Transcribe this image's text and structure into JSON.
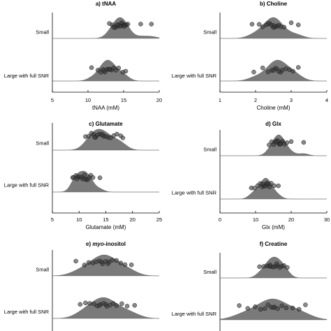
{
  "chart_data": [
    {
      "type": "raincloud",
      "title": "a) tNAA",
      "xlabel": "tNAA (mM)",
      "xlim": [
        5,
        20
      ],
      "xticks": [
        5,
        10,
        15,
        20
      ],
      "categories": [
        "Small",
        "Large with full SNR"
      ],
      "series": [
        {
          "points": [
            13.0,
            13.4,
            13.8,
            14.0,
            14.2,
            14.4,
            14.6,
            14.8,
            15.0,
            15.2,
            15.4,
            15.6,
            13.6,
            14.1,
            14.7,
            15.1,
            17.4,
            18.9
          ]
        },
        {
          "points": [
            10.5,
            11.4,
            11.8,
            12.1,
            12.4,
            12.6,
            12.9,
            13.1,
            13.3,
            13.6,
            13.9,
            14.3,
            14.9,
            15.3,
            12.2,
            13.0
          ]
        }
      ]
    },
    {
      "type": "raincloud",
      "title": "b) Choline",
      "xlabel": "Choline (mM)",
      "xlim": [
        1,
        4
      ],
      "xticks": [
        1,
        2,
        3,
        4
      ],
      "categories": [
        "Small",
        "Large with full SNR"
      ],
      "series": [
        {
          "points": [
            1.9,
            2.1,
            2.2,
            2.3,
            2.4,
            2.45,
            2.5,
            2.55,
            2.6,
            2.65,
            2.7,
            2.8,
            3.0,
            3.2,
            2.35,
            2.52
          ]
        },
        {
          "points": [
            1.95,
            2.2,
            2.35,
            2.45,
            2.55,
            2.6,
            2.7,
            2.75,
            2.85,
            2.95,
            3.05,
            3.2,
            2.5,
            2.65
          ]
        }
      ]
    },
    {
      "type": "raincloud",
      "title": "c) Glutamate",
      "xlabel": "Glutamate (mM)",
      "xlim": [
        5,
        25
      ],
      "xticks": [
        5,
        10,
        15,
        20,
        25
      ],
      "categories": [
        "Small",
        "Large with full SNR"
      ],
      "series": [
        {
          "points": [
            11.2,
            11.8,
            12.3,
            12.7,
            13.1,
            13.4,
            13.8,
            14.2,
            14.6,
            15.0,
            15.4,
            15.9,
            16.5,
            17.1,
            17.8,
            18.2,
            12.9,
            14.4
          ]
        },
        {
          "points": [
            8.8,
            9.0,
            9.4,
            9.8,
            10.1,
            10.4,
            10.7,
            11.0,
            11.3,
            11.6,
            11.9,
            12.2,
            12.6,
            13.9,
            9.6,
            11.1
          ]
        }
      ]
    },
    {
      "type": "raincloud",
      "title": "d) Glx",
      "xlabel": "Glx (mM)",
      "xlim": [
        0,
        30
      ],
      "xticks": [
        0,
        10,
        20,
        30
      ],
      "categories": [
        "Small",
        "Large with full SNR"
      ],
      "series": [
        {
          "points": [
            13.8,
            14.5,
            15.1,
            15.6,
            16.0,
            16.3,
            16.6,
            16.9,
            17.2,
            17.6,
            18.1,
            18.8,
            20.0,
            23.5,
            15.8,
            17.0
          ]
        },
        {
          "points": [
            8.8,
            9.7,
            10.6,
            11.3,
            11.9,
            12.4,
            12.8,
            13.1,
            13.5,
            13.9,
            14.4,
            15.2,
            16.4,
            12.0,
            13.3
          ]
        }
      ]
    },
    {
      "type": "raincloud",
      "title_prefix": "e) ",
      "title_italic": "myo",
      "title_suffix": "-inositol",
      "xlabel": "",
      "categories": [
        "Small",
        "Large with full SNR"
      ],
      "series": [
        {
          "points": [
            0.22,
            0.3,
            0.34,
            0.38,
            0.41,
            0.44,
            0.47,
            0.5,
            0.53,
            0.56,
            0.6,
            0.64,
            0.68,
            0.74,
            0.46,
            0.52
          ]
        },
        {
          "points": [
            0.26,
            0.31,
            0.35,
            0.39,
            0.42,
            0.45,
            0.48,
            0.51,
            0.54,
            0.57,
            0.6,
            0.65,
            0.7,
            0.77,
            0.5,
            0.44
          ]
        }
      ]
    },
    {
      "type": "raincloud",
      "title": "f) Creatine",
      "xlabel": "",
      "categories": [
        "Small",
        "Large with full SNR"
      ],
      "series": [
        {
          "points": [
            0.37,
            0.41,
            0.44,
            0.46,
            0.48,
            0.5,
            0.52,
            0.54,
            0.56,
            0.58,
            0.6,
            0.63,
            0.47,
            0.53
          ]
        },
        {
          "points": [
            0.18,
            0.26,
            0.33,
            0.38,
            0.42,
            0.45,
            0.48,
            0.51,
            0.54,
            0.58,
            0.62,
            0.68,
            0.74,
            0.8,
            0.5
          ]
        }
      ]
    }
  ]
}
